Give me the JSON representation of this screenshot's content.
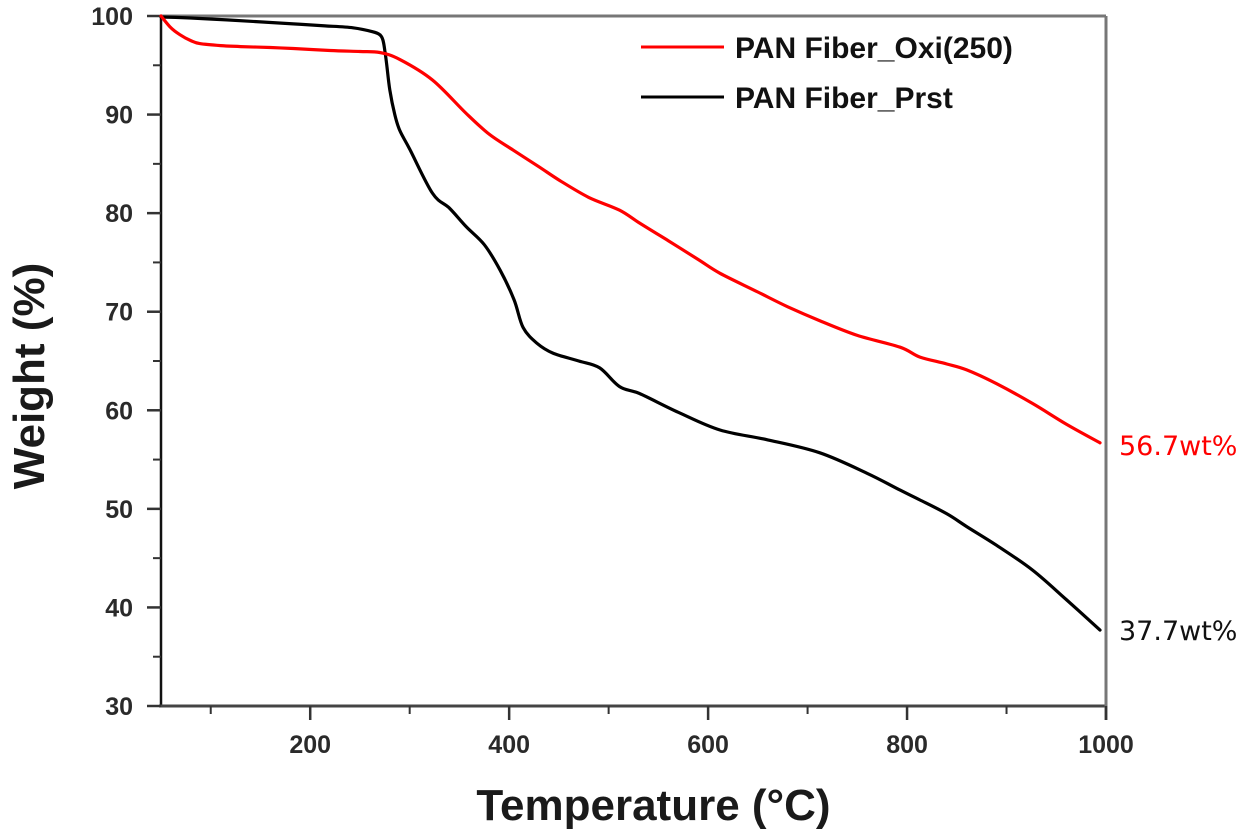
{
  "chart_data": {
    "type": "line",
    "title": "",
    "xlabel": "Temperature (°C)",
    "ylabel": "Weight (%)",
    "xlim": [
      50,
      1000
    ],
    "ylim": [
      30,
      100
    ],
    "xticks": [
      200,
      400,
      600,
      800,
      1000
    ],
    "xminor_ticks": [
      100,
      300,
      500,
      700,
      900
    ],
    "yticks": [
      30,
      40,
      50,
      60,
      70,
      80,
      90,
      100
    ],
    "yminor_ticks": [
      35,
      45,
      55,
      65,
      75,
      85,
      95
    ],
    "grid": false,
    "legend_position": "top-right",
    "series": [
      {
        "name": "PAN Fiber_Oxi(250)",
        "color": "#ff0000",
        "end_label": "56.7wt%",
        "x": [
          50,
          60,
          69,
          80,
          89,
          110,
          130,
          160,
          183,
          220,
          250,
          270,
          290,
          323,
          357,
          380,
          404,
          430,
          451,
          480,
          511,
          531,
          560,
          590,
          612,
          650,
          680,
          712,
          750,
          793,
          813,
          840,
          860,
          890,
          926,
          960,
          994
        ],
        "y": [
          100,
          98.8,
          98.1,
          97.5,
          97.2,
          97.0,
          96.9,
          96.8,
          96.7,
          96.5,
          96.4,
          96.3,
          95.6,
          93.5,
          90.1,
          88.0,
          86.4,
          84.7,
          83.3,
          81.6,
          80.3,
          79.0,
          77.2,
          75.3,
          73.9,
          72.0,
          70.5,
          69.1,
          67.6,
          66.4,
          65.4,
          64.7,
          64.1,
          62.7,
          60.7,
          58.6,
          56.7
        ]
      },
      {
        "name": "PAN Fiber_Prst",
        "color": "#000000",
        "end_label": "37.7wt%",
        "x": [
          50,
          80,
          116,
          150,
          183,
          215,
          243,
          263,
          270,
          273,
          275,
          277,
          280,
          285,
          290,
          300,
          323,
          340,
          357,
          375,
          391,
          405,
          414,
          428,
          444,
          470,
          491,
          511,
          531,
          570,
          612,
          660,
          712,
          760,
          793,
          813,
          840,
          860,
          890,
          926,
          960,
          994
        ],
        "y": [
          99.9,
          99.8,
          99.6,
          99.4,
          99.2,
          99.0,
          98.8,
          98.4,
          98.1,
          97.6,
          96.5,
          95.0,
          92.5,
          90.0,
          88.4,
          86.5,
          82.0,
          80.5,
          78.6,
          76.8,
          74.2,
          71.2,
          68.4,
          66.8,
          65.8,
          65.0,
          64.3,
          62.4,
          61.7,
          59.8,
          58.0,
          57.0,
          55.7,
          53.6,
          51.9,
          50.9,
          49.5,
          48.2,
          46.3,
          43.8,
          40.8,
          37.7
        ]
      }
    ]
  }
}
